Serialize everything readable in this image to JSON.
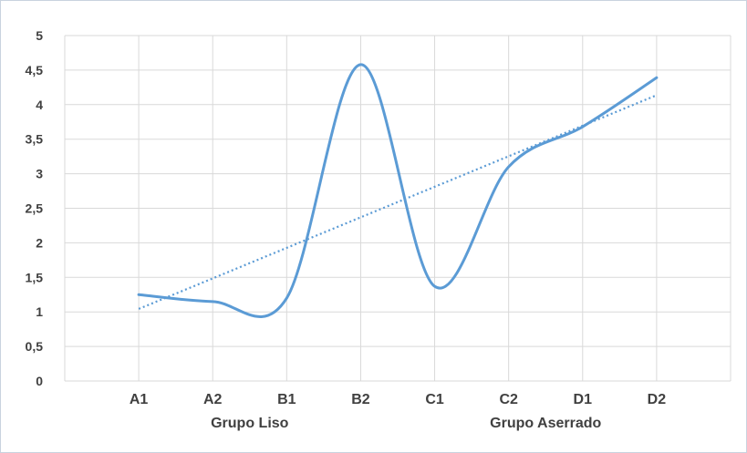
{
  "chart_data": {
    "type": "line",
    "categories": [
      "A1",
      "A2",
      "B1",
      "B2",
      "C1",
      "C2",
      "D1",
      "D2"
    ],
    "groups": [
      {
        "label": "Grupo Liso",
        "categories": [
          "A1",
          "A2",
          "B1",
          "B2"
        ]
      },
      {
        "label": "Grupo Aserrado",
        "categories": [
          "C1",
          "C2",
          "D1",
          "D2"
        ]
      }
    ],
    "series": [
      {
        "values": [
          1.25,
          1.15,
          1.2,
          4.58,
          1.37,
          3.1,
          3.68,
          4.39
        ],
        "color": "#5b9bd5",
        "smooth": true
      }
    ],
    "trendline": {
      "type": "linear",
      "style": "dotted",
      "color": "#5b9bd5"
    },
    "y_ticks": [
      "0",
      "0,5",
      "1",
      "1,5",
      "2",
      "2,5",
      "3",
      "3,5",
      "4",
      "4,5",
      "5"
    ],
    "ylim": [
      0,
      5
    ],
    "grid": true,
    "legend": "none"
  }
}
